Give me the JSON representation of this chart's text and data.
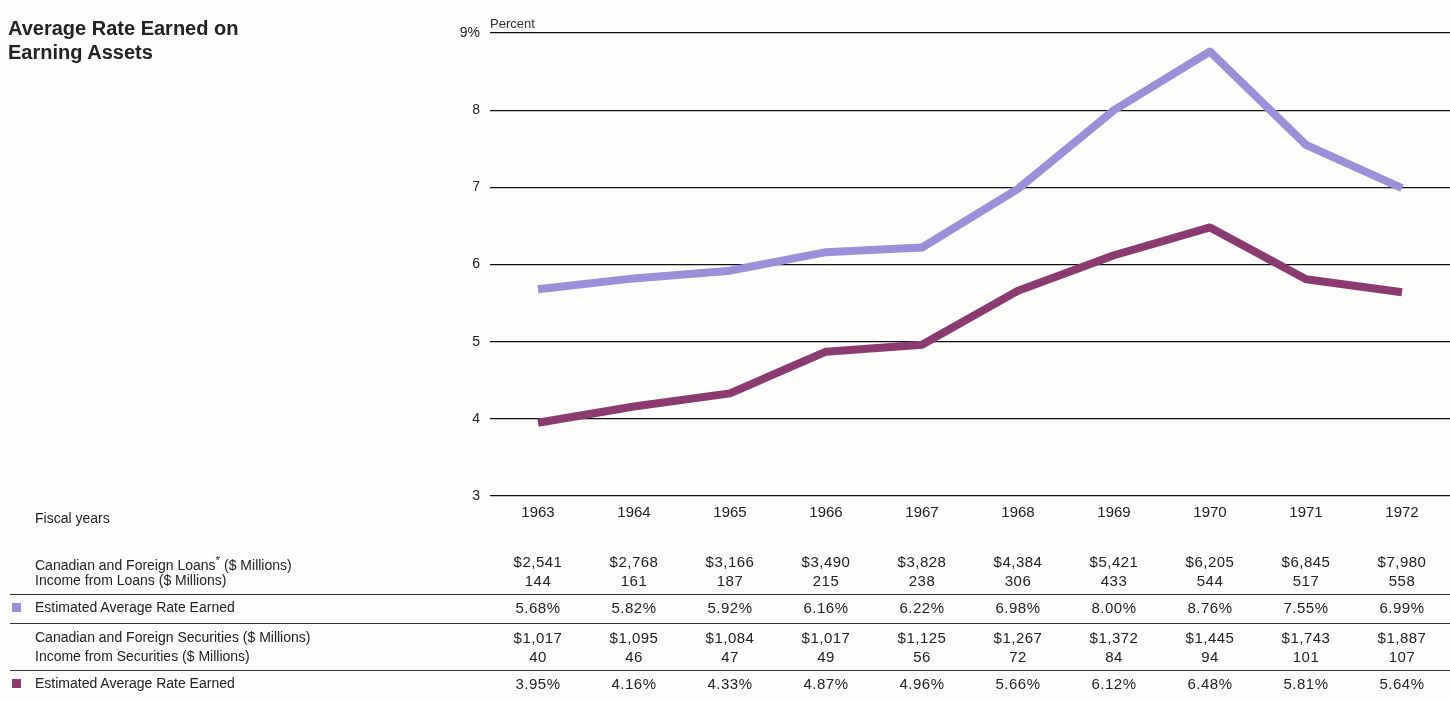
{
  "chart_data": {
    "type": "line",
    "title": "Average Rate Earned on Earning Assets",
    "ylabel": "Percent",
    "annotations": [
      "Fiscal years"
    ],
    "categories": [
      "1963",
      "1964",
      "1965",
      "1966",
      "1967",
      "1968",
      "1969",
      "1970",
      "1971",
      "1972"
    ],
    "ylim": [
      3,
      9
    ],
    "yticks": [
      3,
      4,
      5,
      6,
      7,
      {
        "value": 8,
        "label": "8"
      },
      {
        "value": 9,
        "label": "9%"
      }
    ],
    "grid": "y",
    "marker": "none",
    "line_style": "solid",
    "series": [
      {
        "type": "other",
        "name": "Canadian and Foreign Loans$^{*}$ ($ Millions)",
        "values": [
          null,
          null,
          null,
          null,
          null,
          null,
          null,
          null,
          null,
          null
        ],
        "value_labels": [
          "$2,541",
          "$2,768",
          "$3,166",
          "$3,490",
          "$3,828",
          "$4,384",
          "$5,421",
          "$6,205",
          "$6,845",
          "$7,980"
        ]
      },
      {
        "type": "other",
        "name": "Income from Loans ($ Millions)",
        "values": [
          null,
          null,
          null,
          null,
          null,
          null,
          null,
          null,
          null,
          null
        ],
        "value_labels": [
          "144",
          "161",
          "187",
          "215",
          "238",
          "306",
          "433",
          "544",
          "517",
          "558"
        ]
      },
      {
        "type": "line",
        "name": "Estimated Average Rate Earned",
        "color": "#9a8fd8",
        "values": [
          5.68,
          5.82,
          5.92,
          6.16,
          6.22,
          6.98,
          8.0,
          8.76,
          7.55,
          6.99
        ],
        "value_labels": [
          "5.68%",
          "5.82%",
          "5.92%",
          "6.16%",
          "6.22%",
          "6.98%",
          "8.00%",
          "8.76%",
          "7.55%",
          "6.99%"
        ]
      },
      {
        "type": "other",
        "name": "Canadian and Foreign Securities ($ Millions)",
        "values": [
          null,
          null,
          null,
          null,
          null,
          null,
          null,
          null,
          null,
          null
        ],
        "value_labels": [
          "$1,017",
          "$1,095",
          "$1,084",
          "$1,017",
          "$1,125",
          "$1,267",
          "$1,372",
          "$1,445",
          "$1,743",
          "$1,887"
        ]
      },
      {
        "type": "other",
        "name": "Income from Securities ($ Millions)",
        "values": [
          null,
          null,
          null,
          null,
          null,
          null,
          null,
          null,
          null,
          null
        ],
        "value_labels": [
          "40",
          "46",
          "47",
          "49",
          "56",
          "72",
          "84",
          "94",
          "101",
          "107"
        ]
      },
      {
        "type": "line",
        "name": "Estimated Average Rate Earned",
        "color": "#8c3a72",
        "values": [
          3.95,
          4.16,
          4.33,
          4.87,
          4.96,
          5.66,
          6.12,
          6.48,
          5.81,
          5.64
        ],
        "value_labels": [
          "3.95%",
          "4.16%",
          "4.33%",
          "4.87%",
          "4.96%",
          "5.66%",
          "6.12%",
          "6.48%",
          "5.81%",
          "5.64%"
        ]
      }
    ]
  }
}
